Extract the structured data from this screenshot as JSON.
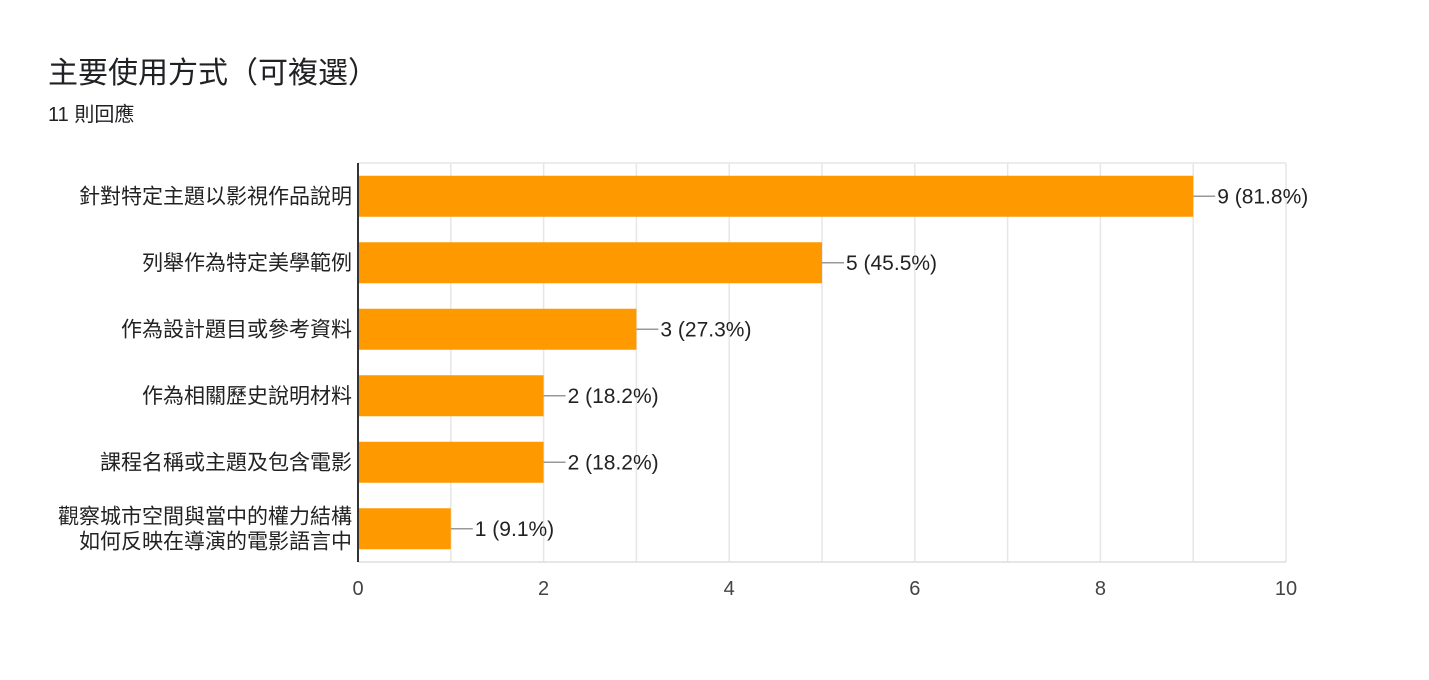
{
  "header": {
    "title": "主要使用方式（可複選）",
    "subtitle": "11 則回應"
  },
  "chart_data": {
    "type": "bar",
    "orientation": "horizontal",
    "title": "主要使用方式（可複選）",
    "subtitle": "11 則回應",
    "categories": [
      [
        "針對特定主題以影視作品說明"
      ],
      [
        "列舉作為特定美學範例"
      ],
      [
        "作為設計題目或參考資料"
      ],
      [
        "作為相關歷史說明材料"
      ],
      [
        "課程名稱或主題及包含電影"
      ],
      [
        "觀察城市空間與當中的權力結構",
        "如何反映在導演的電影語言中"
      ]
    ],
    "values": [
      9,
      5,
      3,
      2,
      2,
      1
    ],
    "data_labels": [
      "9 (81.8%)",
      "5 (45.5%)",
      "3 (27.3%)",
      "2 (18.2%)",
      "2 (18.2%)",
      "1 (9.1%)"
    ],
    "xlim": [
      0,
      10
    ],
    "x_ticks": [
      0,
      2,
      4,
      6,
      8,
      10
    ],
    "x_tick_labels": [
      "0",
      "2",
      "4",
      "6",
      "8",
      "10"
    ],
    "grid": true,
    "bar_color": "#ff9900",
    "grid_color": "#e6e6e6",
    "axis_color": "#333333"
  }
}
